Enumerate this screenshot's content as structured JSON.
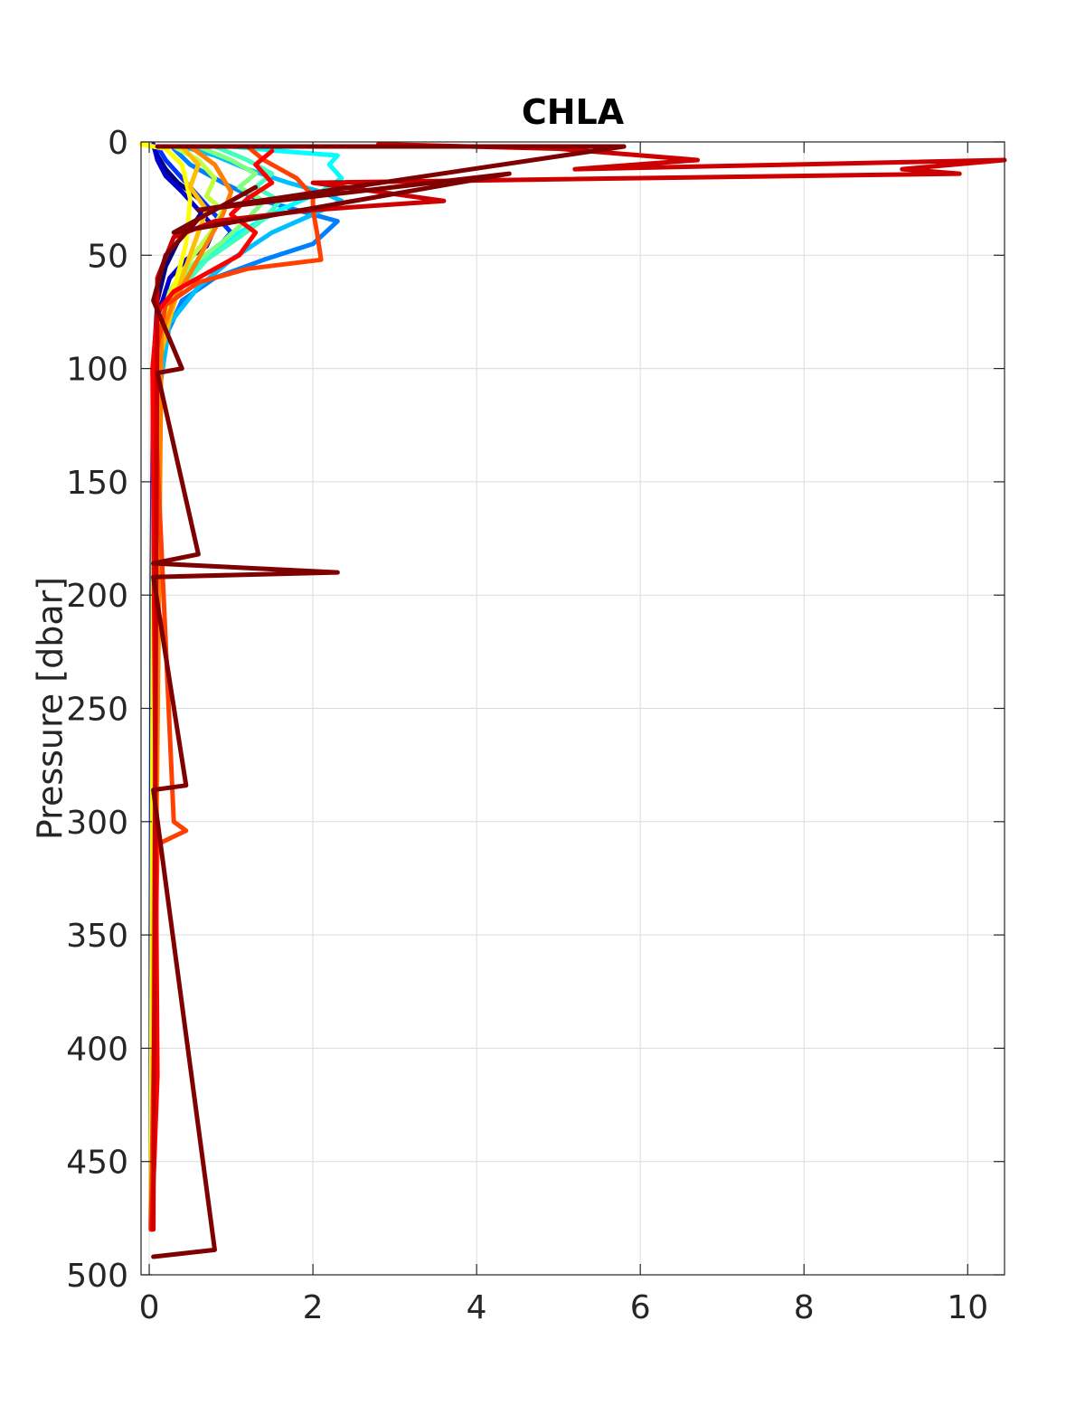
{
  "chart_data": {
    "type": "line",
    "title": "CHLA",
    "xlabel": "",
    "ylabel": "Pressure [dbar]",
    "xlim": [
      -0.1,
      10.45
    ],
    "ylim": [
      0,
      500
    ],
    "y_reversed": true,
    "grid": true,
    "legend": "none",
    "x_ticks": [
      0,
      2,
      4,
      6,
      8,
      10
    ],
    "y_ticks": [
      0,
      50,
      100,
      150,
      200,
      250,
      300,
      350,
      400,
      450,
      500
    ],
    "x_tick_labels": [
      "0",
      "2",
      "4",
      "6",
      "8",
      "10"
    ],
    "y_tick_labels": [
      "0",
      "50",
      "100",
      "150",
      "200",
      "250",
      "300",
      "350",
      "400",
      "450",
      "500"
    ],
    "colormap": "jet",
    "series": [
      {
        "color": "#00007f",
        "x": [
          0.05,
          0.1,
          0.2,
          0.35,
          0.5,
          0.7,
          0.55,
          0.35,
          0.2,
          0.1,
          0.05,
          0.03,
          0.02,
          0.02
        ],
        "y": [
          2,
          6,
          12,
          18,
          22,
          28,
          36,
          44,
          55,
          70,
          100,
          200,
          350,
          480
        ]
      },
      {
        "color": "#0000cc",
        "x": [
          0.05,
          0.1,
          0.2,
          0.4,
          0.6,
          0.8,
          0.7,
          0.45,
          0.25,
          0.12,
          0.05,
          0.03,
          0.02
        ],
        "y": [
          1,
          8,
          15,
          22,
          30,
          38,
          46,
          52,
          60,
          75,
          110,
          250,
          480
        ]
      },
      {
        "color": "#0033ff",
        "x": [
          0.1,
          0.2,
          0.4,
          0.6,
          0.8,
          1.0,
          0.8,
          0.5,
          0.3,
          0.1,
          0.04,
          0.02
        ],
        "y": [
          2,
          8,
          16,
          24,
          32,
          40,
          48,
          55,
          65,
          90,
          150,
          480
        ]
      },
      {
        "color": "#0080ff",
        "x": [
          0.3,
          0.5,
          0.9,
          1.3,
          1.8,
          2.3,
          2.0,
          1.4,
          0.8,
          0.4,
          0.15,
          0.05,
          0.02
        ],
        "y": [
          3,
          10,
          18,
          25,
          30,
          35,
          45,
          52,
          60,
          70,
          90,
          150,
          480
        ]
      },
      {
        "color": "#00bfff",
        "x": [
          0.4,
          0.8,
          1.2,
          1.7,
          2.1,
          2.35,
          2.0,
          1.5,
          1.0,
          0.6,
          0.25,
          0.08,
          0.03
        ],
        "y": [
          2,
          6,
          12,
          18,
          22,
          26,
          32,
          40,
          52,
          64,
          80,
          120,
          480
        ]
      },
      {
        "color": "#00ffff",
        "x": [
          1.0,
          1.6,
          2.3,
          2.2,
          2.35,
          2.1,
          1.6,
          1.1,
          0.7,
          0.3,
          0.1,
          0.03
        ],
        "y": [
          2,
          4,
          6,
          10,
          16,
          22,
          30,
          40,
          50,
          65,
          90,
          480
        ]
      },
      {
        "color": "#40ffbf",
        "x": [
          0.8,
          1.2,
          1.5,
          1.3,
          1.6,
          1.4,
          1.1,
          0.7,
          0.35,
          0.12,
          0.03
        ],
        "y": [
          2,
          8,
          14,
          20,
          26,
          34,
          42,
          52,
          66,
          85,
          480
        ]
      },
      {
        "color": "#80ff80",
        "x": [
          0.6,
          1.0,
          1.3,
          1.1,
          1.4,
          1.2,
          0.9,
          0.5,
          0.25,
          0.08,
          0.02
        ],
        "y": [
          2,
          8,
          14,
          20,
          26,
          34,
          44,
          55,
          68,
          90,
          480
        ]
      },
      {
        "color": "#bfff40",
        "x": [
          0.3,
          0.6,
          0.8,
          0.7,
          0.9,
          0.75,
          0.5,
          0.25,
          0.1,
          0.03
        ],
        "y": [
          2,
          8,
          16,
          24,
          30,
          40,
          52,
          66,
          85,
          480
        ]
      },
      {
        "color": "#ffff00",
        "x": [
          -0.1,
          0.2,
          0.4,
          0.5,
          0.45,
          0.3,
          0.15,
          0.05,
          0.02
        ],
        "y": [
          1,
          3,
          10,
          25,
          45,
          65,
          85,
          150,
          480
        ]
      },
      {
        "color": "#ffbf00",
        "x": [
          0.4,
          0.6,
          0.5,
          0.7,
          0.55,
          0.4,
          0.25,
          0.1,
          0.03
        ],
        "y": [
          2,
          10,
          20,
          30,
          45,
          60,
          78,
          100,
          480
        ]
      },
      {
        "color": "#ff8000",
        "x": [
          0.5,
          0.8,
          1.0,
          0.9,
          0.7,
          0.5,
          0.3,
          0.15,
          0.04
        ],
        "y": [
          2,
          10,
          22,
          32,
          45,
          58,
          70,
          85,
          480
        ]
      },
      {
        "color": "#ff4000",
        "x": [
          1.2,
          1.4,
          1.8,
          2.0,
          2.0,
          2.05,
          2.1,
          1.2,
          0.6,
          0.2,
          0.05,
          0.3,
          0.45,
          0.1,
          0.02
        ],
        "y": [
          2,
          8,
          16,
          24,
          30,
          40,
          52,
          56,
          62,
          72,
          100,
          300,
          304,
          310,
          480
        ]
      },
      {
        "color": "#ff0000",
        "x": [
          1.5,
          1.3,
          1.5,
          1.2,
          1.0,
          1.3,
          1.1,
          0.7,
          0.3,
          0.1,
          0.04,
          0.1,
          0.03
        ],
        "y": [
          4,
          10,
          18,
          25,
          32,
          40,
          50,
          58,
          66,
          75,
          100,
          412,
          480
        ]
      },
      {
        "color": "#cc0000",
        "x": [
          2.8,
          5.0,
          6.7,
          5.2,
          10.45,
          9.2,
          9.9,
          2.0,
          3.6,
          2.0,
          0.8,
          0.3,
          0.1,
          0.05
        ],
        "y": [
          1,
          3,
          8,
          12,
          8,
          12,
          14,
          18,
          26,
          30,
          35,
          42,
          60,
          480
        ]
      },
      {
        "color": "#7f0000",
        "x": [
          0.1,
          5.8,
          0.6,
          4.4,
          0.3,
          1.3,
          0.6,
          0.2,
          0.05,
          0.4,
          0.1,
          0.6,
          0.05,
          2.3,
          0.05,
          0.45,
          0.05,
          0.8,
          0.05
        ],
        "y": [
          2,
          2,
          30,
          14,
          40,
          20,
          34,
          50,
          70,
          100,
          102,
          182,
          186,
          190,
          192,
          284,
          286,
          489,
          492
        ]
      }
    ]
  }
}
